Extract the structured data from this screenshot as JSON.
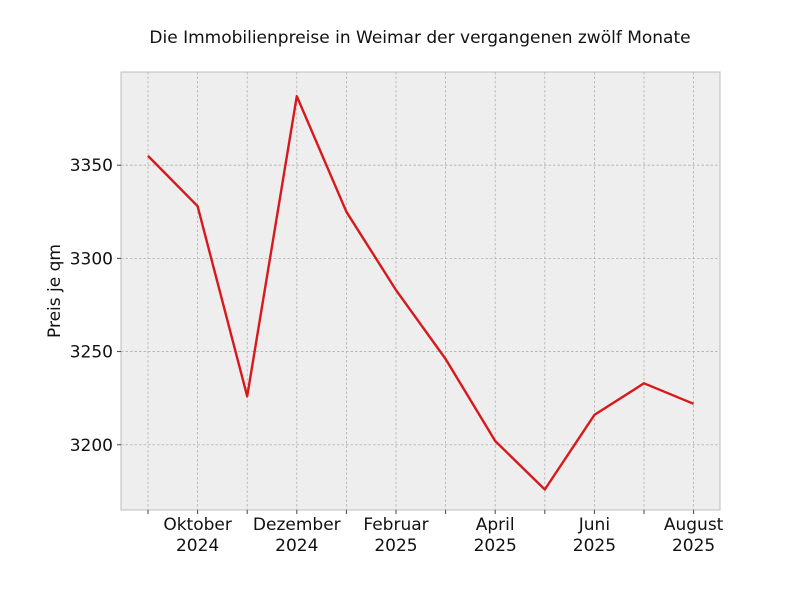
{
  "chart_data": {
    "type": "line",
    "title": "Die Immobilienpreise in Weimar der vergangenen zwölf Monate",
    "xlabel": "",
    "ylabel": "Preis je qm",
    "x": [
      "2024-09",
      "2024-10",
      "2024-11",
      "2024-12",
      "2025-01",
      "2025-02",
      "2025-03",
      "2025-04",
      "2025-05",
      "2025-06",
      "2025-07",
      "2025-08"
    ],
    "x_tick_labels": [
      {
        "month": "Oktober",
        "year": "2024"
      },
      {
        "month": "Dezember",
        "year": "2024"
      },
      {
        "month": "Februar",
        "year": "2025"
      },
      {
        "month": "April",
        "year": "2025"
      },
      {
        "month": "Juni",
        "year": "2025"
      },
      {
        "month": "August",
        "year": "2025"
      }
    ],
    "y_ticks": [
      "3200",
      "3250",
      "3300",
      "3350"
    ],
    "series": [
      {
        "values": [
          3355,
          3328,
          3226,
          3387,
          3325,
          3283,
          3246,
          3202,
          3176,
          3216,
          3233,
          3222
        ]
      }
    ],
    "ylim": [
      3165,
      3400
    ],
    "grid": true,
    "line_color": "#d7191c",
    "plot_background": "#eeeeee"
  }
}
